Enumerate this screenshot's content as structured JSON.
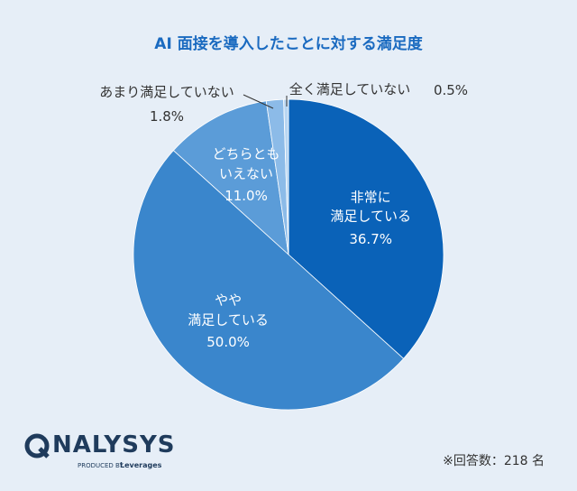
{
  "chart_data": {
    "type": "pie",
    "title": "AI 面接を導入したことに対する満足度",
    "categories": [
      "非常に\n満足している",
      "やや\n満足している",
      "どちらとも\nいえない",
      "あまり満足していない",
      "全く満足していない"
    ],
    "values": [
      36.7,
      50.0,
      11.0,
      1.8,
      0.5
    ],
    "value_labels": [
      "36.7%",
      "50.0%",
      "11.0%",
      "1.8%",
      "0.5%"
    ],
    "colors": [
      "#0a62b8",
      "#3a86cc",
      "#5b9cd8",
      "#8cbbe8",
      "#b8d6f2"
    ]
  },
  "note": "※回答数：218 名",
  "logo": {
    "name": "NALYSYS",
    "produced_by": "PRODUCED BY",
    "brand": "Leverages"
  }
}
